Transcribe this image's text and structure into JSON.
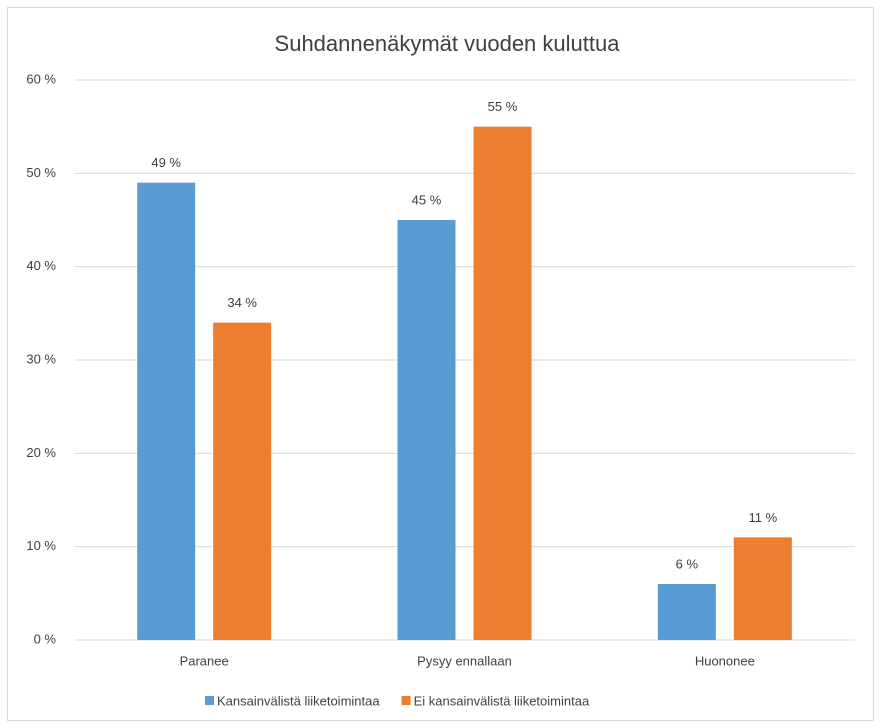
{
  "chart_data": {
    "type": "bar",
    "title": "Suhdannenäkymät vuoden kuluttua",
    "categories": [
      "Paranee",
      "Pysyy ennallaan",
      "Huononee"
    ],
    "series": [
      {
        "name": "Kansainvälistä liiketoimintaa",
        "color": "#5b9bd5",
        "values": [
          49,
          45,
          6
        ],
        "value_labels": [
          "49 %",
          "45 %",
          "6 %"
        ]
      },
      {
        "name": "Ei kansainvälistä liiketoimintaa",
        "color": "#ed7d31",
        "values": [
          34,
          55,
          11
        ],
        "value_labels": [
          "34 %",
          "55 %",
          "11 %"
        ]
      }
    ],
    "ylim": [
      0,
      60
    ],
    "yticks": [
      {
        "value": 0,
        "label": "0 %"
      },
      {
        "value": 10,
        "label": "10 %"
      },
      {
        "value": 20,
        "label": "20 %"
      },
      {
        "value": 30,
        "label": "30 %"
      },
      {
        "value": 40,
        "label": "40 %"
      },
      {
        "value": 50,
        "label": "50 %"
      },
      {
        "value": 60,
        "label": "60 %"
      }
    ],
    "grid": true,
    "legend": "bottom"
  }
}
